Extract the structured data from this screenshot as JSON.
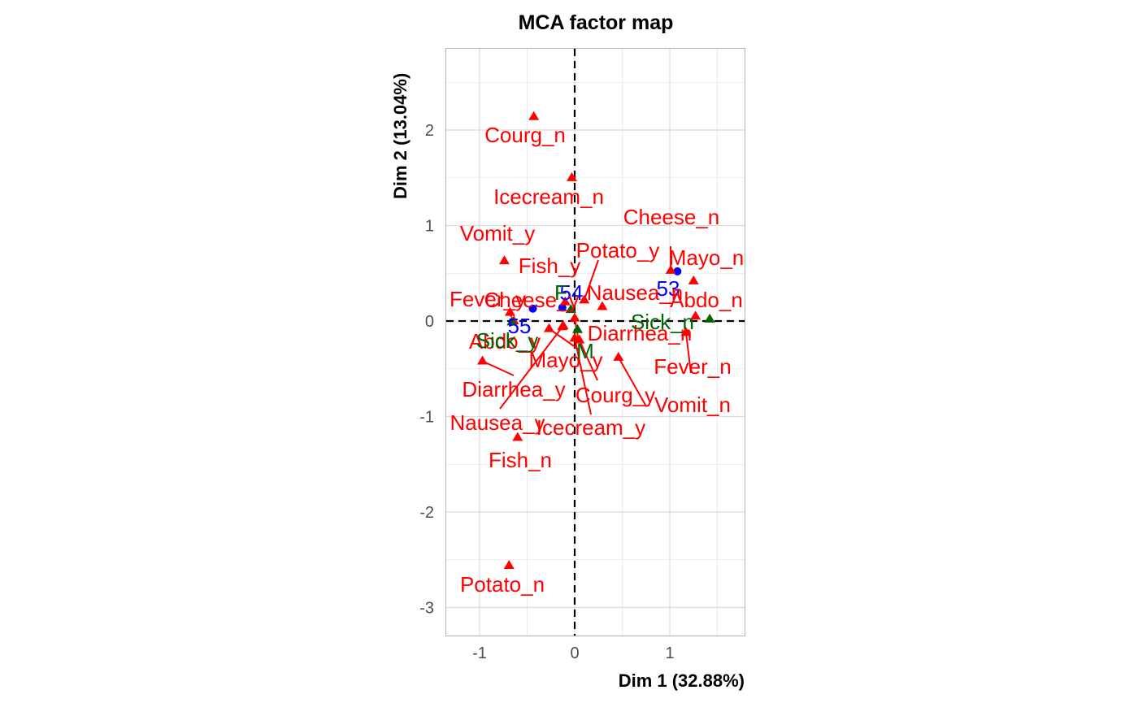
{
  "chart_data": {
    "type": "scatter",
    "title": "MCA factor map",
    "xlabel": "Dim 1 (32.88%)",
    "ylabel": "Dim 2 (13.04%)",
    "xlim": [
      -1.35,
      1.8
    ],
    "ylim": [
      -3.3,
      2.9
    ],
    "x_ticks": [
      {
        "value": -1,
        "label": "-1"
      },
      {
        "value": 0,
        "label": "0"
      },
      {
        "value": 1,
        "label": "1"
      }
    ],
    "y_ticks": [
      {
        "value": 2,
        "label": "2"
      },
      {
        "value": 1,
        "label": "1"
      },
      {
        "value": 0,
        "label": "0"
      },
      {
        "value": -1,
        "label": "-1"
      },
      {
        "value": -2,
        "label": "-2"
      },
      {
        "value": -3,
        "label": "-3"
      }
    ],
    "grid": true,
    "reference_lines": "dashed at x=0 and y=0",
    "colors": {
      "individuals": "#0000ff",
      "active_categories": "#ff0000",
      "supplementary_categories": "#006400",
      "grid": "#dcdcdc",
      "panel_border": "#b3b3b3"
    },
    "series": [
      {
        "kind": "individuals",
        "marker": "circle",
        "points": [
          {
            "label": "53",
            "x": 1.08,
            "y": 0.52
          },
          {
            "label": "54",
            "x": -0.13,
            "y": 0.14
          },
          {
            "label": "55",
            "x": -0.44,
            "y": 0.13
          }
        ]
      },
      {
        "kind": "active categories",
        "marker": "triangle",
        "points": [
          {
            "label": "Courg_n",
            "x": -0.43,
            "y": 2.14
          },
          {
            "label": "Icecream_n",
            "x": -0.03,
            "y": 1.5
          },
          {
            "label": "Cheese_n",
            "x": 1.01,
            "y": 0.53
          },
          {
            "label": "Mayo_n",
            "x": 1.25,
            "y": 0.42
          },
          {
            "label": "Vomit_y",
            "x": -0.74,
            "y": 0.63
          },
          {
            "label": "Potato_y",
            "x": 0.1,
            "y": 0.22
          },
          {
            "label": "Fish_y",
            "x": -0.1,
            "y": 0.2
          },
          {
            "label": "Nausea_n",
            "x": 0.29,
            "y": 0.15
          },
          {
            "label": "Abdo_n",
            "x": 1.27,
            "y": 0.05
          },
          {
            "label": "Fever_y",
            "x": -0.68,
            "y": 0.09
          },
          {
            "label": "Cheese_y",
            "x": -0.13,
            "y": -0.06
          },
          {
            "label": "Diarrhea_n",
            "x": 0.0,
            "y": 0.03
          },
          {
            "label": "Abdo_y",
            "x": -0.64,
            "y": 0.0
          },
          {
            "label": "Mayo_y",
            "x": -0.27,
            "y": -0.08
          },
          {
            "label": "Fever_n",
            "x": 1.17,
            "y": -0.12
          },
          {
            "label": "Vomit_n",
            "x": 0.46,
            "y": -0.38
          },
          {
            "label": "Courg_y",
            "x": 0.05,
            "y": -0.2
          },
          {
            "label": "Icecream_y",
            "x": 0.0,
            "y": -0.18
          },
          {
            "label": "Diarrhea_y",
            "x": -0.97,
            "y": -0.42
          },
          {
            "label": "Nausea_y",
            "x": -0.12,
            "y": -0.05
          },
          {
            "label": "Fish_n",
            "x": -0.6,
            "y": -1.22
          },
          {
            "label": "Potato_n",
            "x": -0.69,
            "y": -2.56
          }
        ]
      },
      {
        "kind": "supplementary categories",
        "marker": "triangle",
        "points": [
          {
            "label": "Sick_n",
            "x": 1.42,
            "y": 0.02
          },
          {
            "label": "Sick_y",
            "x": -0.66,
            "y": -0.01
          },
          {
            "label": "F",
            "x": -0.04,
            "y": 0.12
          },
          {
            "label": "M",
            "x": 0.03,
            "y": -0.09
          }
        ]
      }
    ]
  }
}
